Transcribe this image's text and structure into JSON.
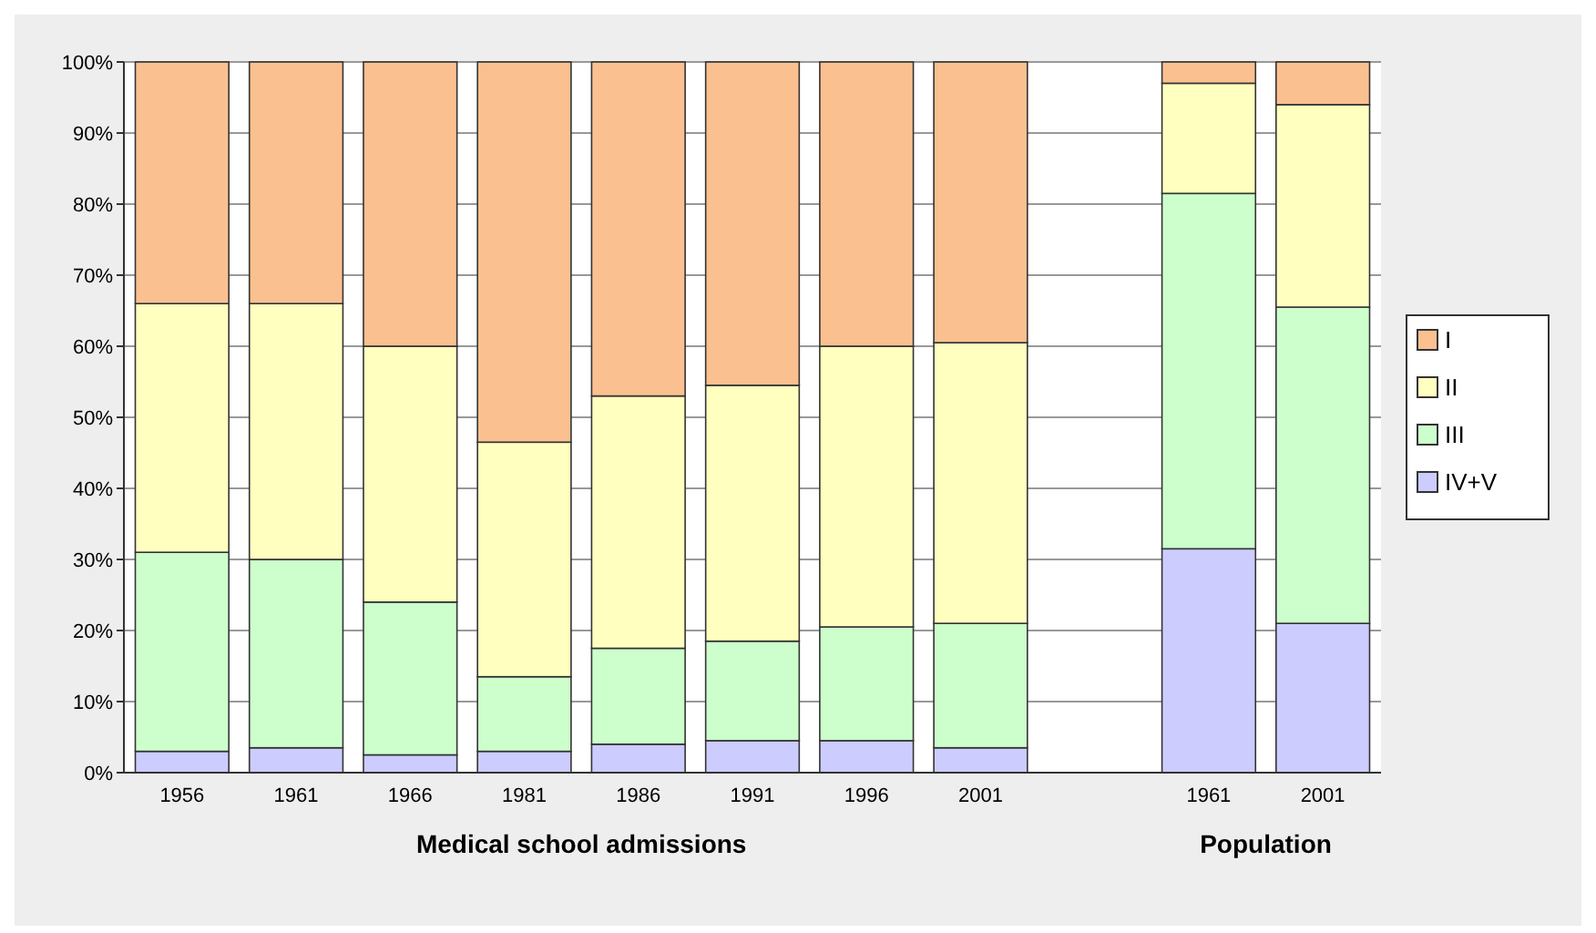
{
  "chart_data": {
    "type": "bar",
    "stacked": true,
    "categories": [
      "1956",
      "1961",
      "1966",
      "1981",
      "1986",
      "1991",
      "1996",
      "2001",
      null,
      "1961",
      "2001"
    ],
    "series": [
      {
        "name": "IV+V",
        "color": "#ccccff",
        "values": [
          3,
          3.5,
          2.5,
          3,
          4,
          4.5,
          4.5,
          3.5,
          null,
          31.5,
          21
        ]
      },
      {
        "name": "III",
        "color": "#ccffcc",
        "values": [
          28,
          26.5,
          21.5,
          10.5,
          13.5,
          14,
          16,
          17.5,
          null,
          50,
          44.5
        ]
      },
      {
        "name": "II",
        "color": "#ffffc0",
        "values": [
          35,
          36,
          36,
          33,
          35.5,
          36,
          39.5,
          39.5,
          null,
          15.5,
          28.5
        ]
      },
      {
        "name": "I",
        "color": "#fac090",
        "values": [
          34,
          34,
          40,
          53.5,
          47,
          45.5,
          40,
          39.5,
          null,
          3,
          6
        ]
      }
    ],
    "ylim": [
      0,
      100
    ],
    "yticks": [
      {
        "value": 0,
        "label": "0%"
      },
      {
        "value": 10,
        "label": "10%"
      },
      {
        "value": 20,
        "label": "20%"
      },
      {
        "value": 30,
        "label": "30%"
      },
      {
        "value": 40,
        "label": "40%"
      },
      {
        "value": 50,
        "label": "50%"
      },
      {
        "value": 60,
        "label": "60%"
      },
      {
        "value": 70,
        "label": "70%"
      },
      {
        "value": 80,
        "label": "80%"
      },
      {
        "value": 90,
        "label": "90%"
      },
      {
        "value": 100,
        "label": "100%"
      }
    ],
    "grid": "y",
    "legend": "right",
    "annotations": [
      "Medical school admissions",
      "Population"
    ]
  }
}
